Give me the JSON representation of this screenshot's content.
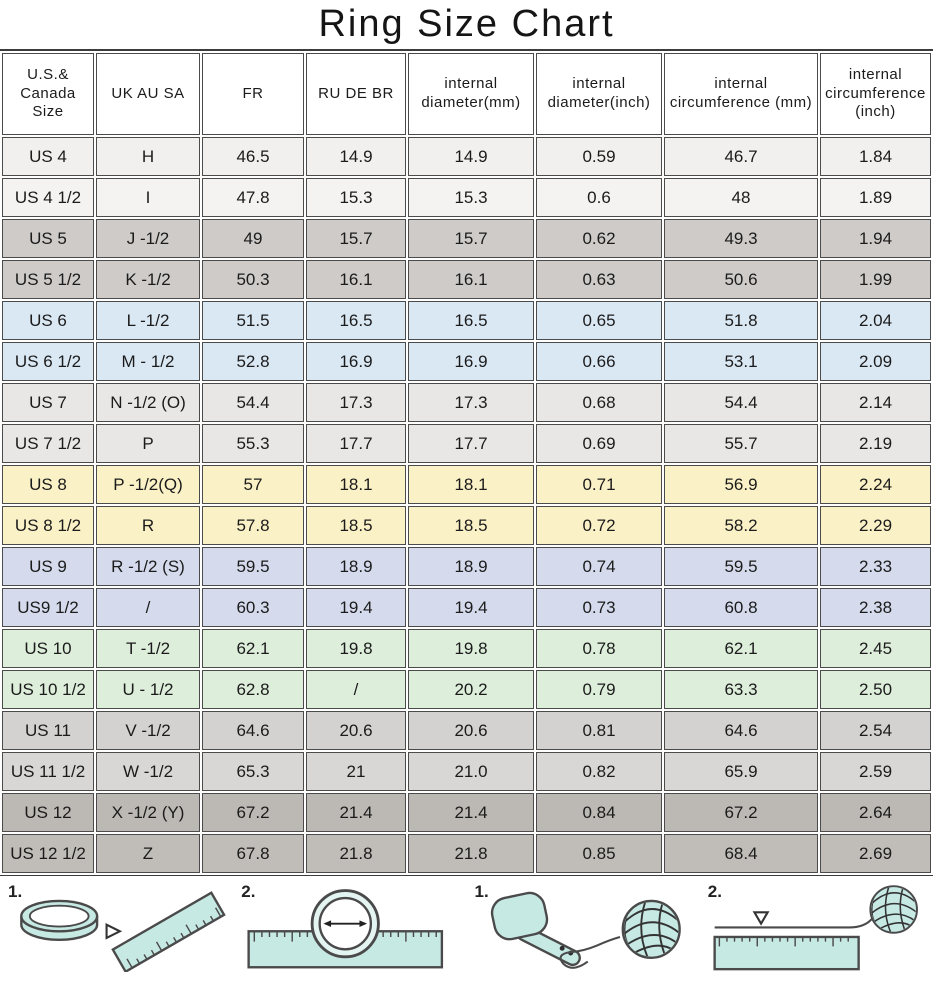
{
  "title": "Ring Size Chart",
  "chart_data": {
    "type": "table",
    "title": "Ring Size Chart",
    "columns": [
      "U.S.& Canada Size",
      "UK AU SA",
      "FR",
      "RU DE BR",
      "internal diameter(mm)",
      "internal diameter(inch)",
      "internal circumference (mm)",
      "internal circumference (inch)"
    ],
    "rows": [
      [
        "US 4",
        "H",
        "46.5",
        "14.9",
        "14.9",
        "0.59",
        "46.7",
        "1.84"
      ],
      [
        "US 4 1/2",
        "I",
        "47.8",
        "15.3",
        "15.3",
        "0.6",
        "48",
        "1.89"
      ],
      [
        "US 5",
        "J -1/2",
        "49",
        "15.7",
        "15.7",
        "0.62",
        "49.3",
        "1.94"
      ],
      [
        "US 5 1/2",
        "K -1/2",
        "50.3",
        "16.1",
        "16.1",
        "0.63",
        "50.6",
        "1.99"
      ],
      [
        "US 6",
        "L -1/2",
        "51.5",
        "16.5",
        "16.5",
        "0.65",
        "51.8",
        "2.04"
      ],
      [
        "US 6 1/2",
        "M - 1/2",
        "52.8",
        "16.9",
        "16.9",
        "0.66",
        "53.1",
        "2.09"
      ],
      [
        "US 7",
        "N -1/2 (O)",
        "54.4",
        "17.3",
        "17.3",
        "0.68",
        "54.4",
        "2.14"
      ],
      [
        "US 7 1/2",
        "P",
        "55.3",
        "17.7",
        "17.7",
        "0.69",
        "55.7",
        "2.19"
      ],
      [
        "US 8",
        "P -1/2(Q)",
        "57",
        "18.1",
        "18.1",
        "0.71",
        "56.9",
        "2.24"
      ],
      [
        "US 8 1/2",
        "R",
        "57.8",
        "18.5",
        "18.5",
        "0.72",
        "58.2",
        "2.29"
      ],
      [
        "US 9",
        "R -1/2 (S)",
        "59.5",
        "18.9",
        "18.9",
        "0.74",
        "59.5",
        "2.33"
      ],
      [
        "US9 1/2",
        "/",
        "60.3",
        "19.4",
        "19.4",
        "0.73",
        "60.8",
        "2.38"
      ],
      [
        "US 10",
        "T -1/2",
        "62.1",
        "19.8",
        "19.8",
        "0.78",
        "62.1",
        "2.45"
      ],
      [
        "US 10 1/2",
        "U - 1/2",
        "62.8",
        "/",
        "20.2",
        "0.79",
        "63.3",
        "2.50"
      ],
      [
        "US 11",
        "V -1/2",
        "64.6",
        "20.6",
        "20.6",
        "0.81",
        "64.6",
        "2.54"
      ],
      [
        "US 11 1/2",
        "W -1/2",
        "65.3",
        "21",
        "21.0",
        "0.82",
        "65.9",
        "2.59"
      ],
      [
        "US 12",
        "X -1/2 (Y)",
        "67.2",
        "21.4",
        "21.4",
        "0.84",
        "67.2",
        "2.64"
      ],
      [
        "US 12 1/2",
        "Z",
        "67.8",
        "21.8",
        "21.8",
        "0.85",
        "68.4",
        "2.69"
      ]
    ],
    "row_colors": [
      "#f1f0ee",
      "#f4f3f1",
      "#cecbc9",
      "#cecbc9",
      "#dae8f4",
      "#dae8f4",
      "#e8e7e5",
      "#e8e7e5",
      "#fbf1c6",
      "#fbf1c6",
      "#d5dbed",
      "#d5dbed",
      "#ddeedb",
      "#ddeedb",
      "#d4d2d0",
      "#d9d7d5",
      "#bcb8b4",
      "#c0bcb8"
    ]
  },
  "instructions": {
    "steps": [
      {
        "label": "1.",
        "icon": "ring-beside-ruler-icon"
      },
      {
        "label": "2.",
        "icon": "ring-on-ruler-icon"
      },
      {
        "label": "1.",
        "icon": "finger-string-yarn-icon"
      },
      {
        "label": "2.",
        "icon": "string-on-ruler-yarn-icon"
      }
    ]
  },
  "colors": {
    "illustration_fill": "#c7e9e4",
    "illustration_stroke": "#4a4a4a",
    "table_border": "#4b4b4b",
    "text": "#1b1b1b",
    "background": "#ffffff"
  }
}
